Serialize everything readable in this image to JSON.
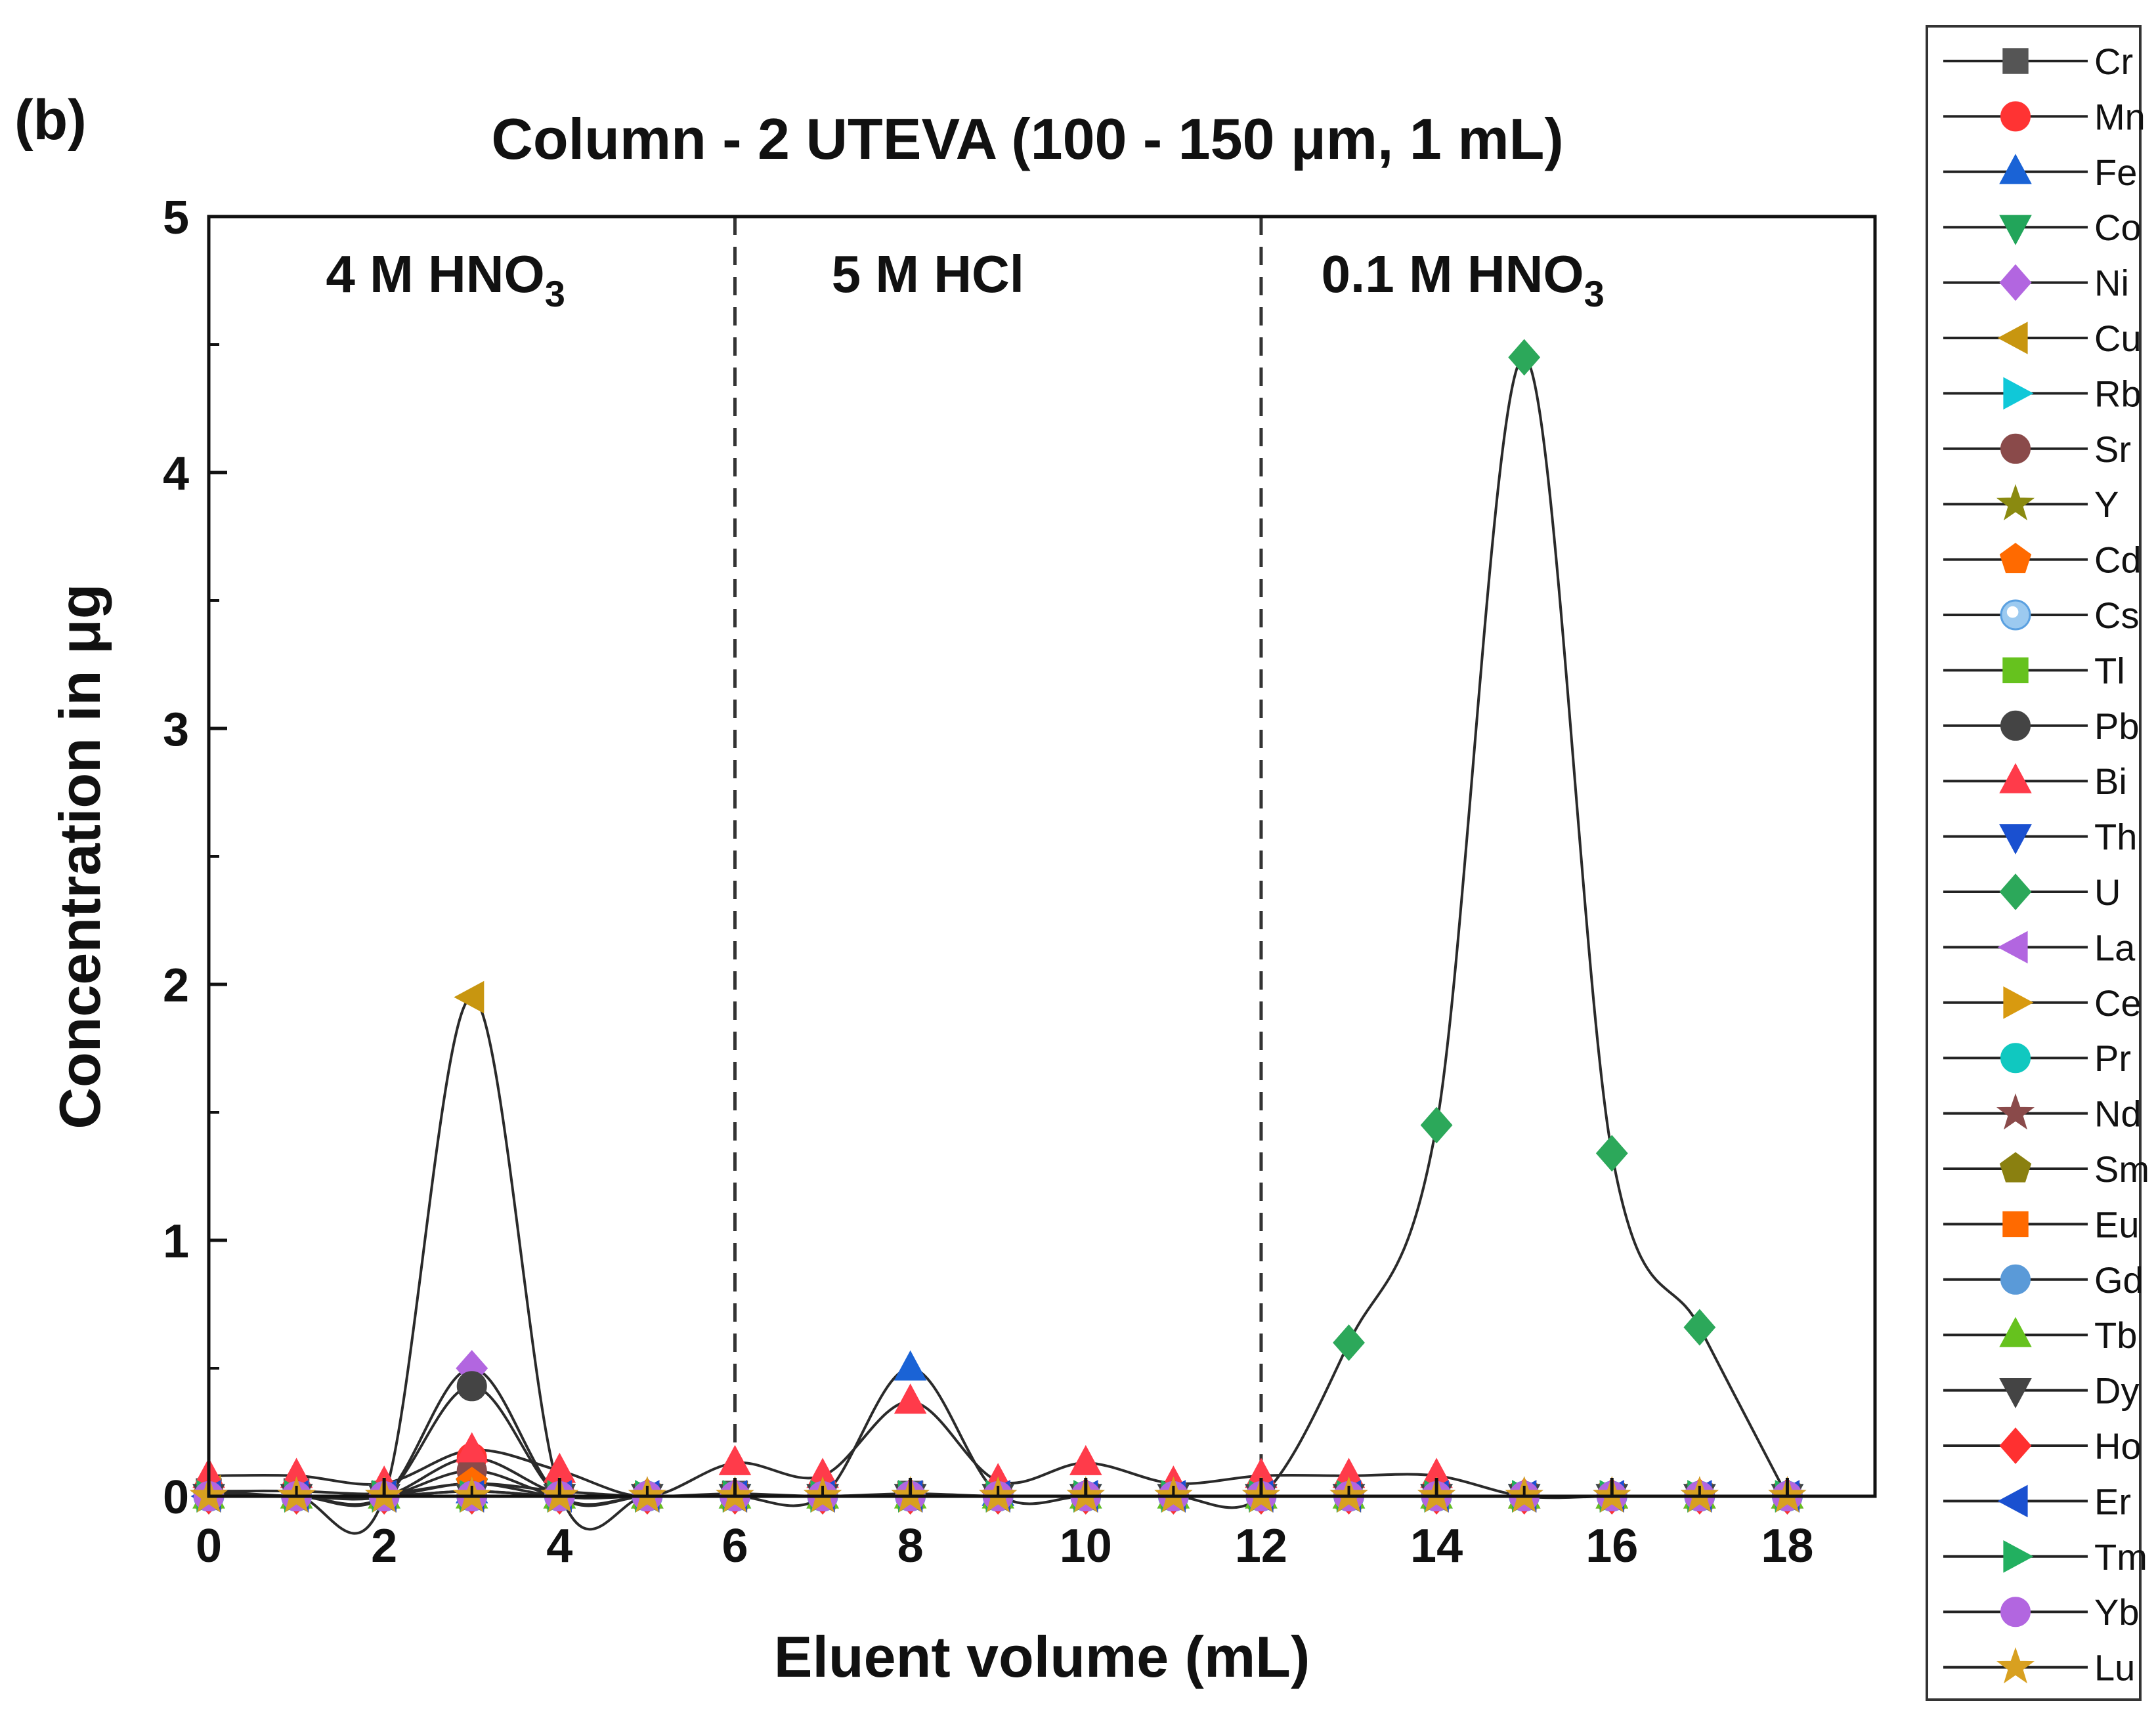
{
  "chart_data": {
    "type": "line",
    "panel_label": "(b)",
    "title": "Column - 2 UTEVA (100 - 150 μm, 1 mL)",
    "xlabel": "Eluent volume (mL)",
    "ylabel": "Concentration in μg",
    "xlim": [
      0,
      19
    ],
    "ylim": [
      0,
      5
    ],
    "x_ticks": [
      0,
      2,
      4,
      6,
      8,
      10,
      12,
      14,
      16,
      18
    ],
    "y_ticks": [
      0,
      1,
      2,
      3,
      4,
      5
    ],
    "dividers": [
      6,
      12
    ],
    "regions": [
      {
        "label": "4 M HNO",
        "sub": "3",
        "x_center": 2.7
      },
      {
        "label": "5 M HCl",
        "sub": "",
        "x_center": 8.2
      },
      {
        "label": "0.1 M HNO",
        "sub": "3",
        "x_center": 14.3
      }
    ],
    "x": [
      0,
      1,
      2,
      3,
      4,
      5,
      6,
      7,
      8,
      9,
      10,
      11,
      12,
      13,
      14,
      15,
      16,
      17,
      18
    ],
    "series": [
      {
        "name": "Cr",
        "color": "#555555",
        "marker": "square",
        "values": [
          0.02,
          0.02,
          0.01,
          0.05,
          0.02,
          0,
          0.01,
          0,
          0.01,
          0,
          0,
          0,
          0,
          0,
          0,
          0,
          0,
          0,
          0
        ]
      },
      {
        "name": "Mn",
        "color": "#ff3333",
        "marker": "circle",
        "values": [
          0.01,
          0,
          0,
          0.15,
          0.01,
          0,
          0,
          0,
          0,
          0,
          0,
          0,
          0,
          0,
          0,
          0,
          0,
          0,
          0
        ]
      },
      {
        "name": "Fe",
        "color": "#1a63d6",
        "marker": "triangle-up",
        "values": [
          0,
          0,
          0,
          0.02,
          0,
          0,
          0,
          0,
          0.5,
          0.01,
          0,
          0,
          0,
          0,
          0,
          0,
          0,
          0,
          0
        ]
      },
      {
        "name": "Co",
        "color": "#22a55a",
        "marker": "triangle-down",
        "values": [
          0,
          0,
          0,
          0.02,
          0,
          0,
          0,
          0,
          0,
          0,
          0,
          0,
          0,
          0,
          0,
          0,
          0,
          0,
          0
        ]
      },
      {
        "name": "Ni",
        "color": "#b266e0",
        "marker": "diamond",
        "values": [
          0,
          0,
          0,
          0.5,
          0,
          0,
          0,
          0,
          0,
          0,
          0,
          0,
          0,
          0,
          0,
          0,
          0,
          0,
          0
        ]
      },
      {
        "name": "Cu",
        "color": "#c89610",
        "marker": "triangle-left",
        "values": [
          0.02,
          0,
          0,
          1.95,
          0.02,
          0,
          0,
          0,
          0,
          0,
          0,
          0,
          0,
          0,
          0,
          0,
          0,
          0,
          0
        ]
      },
      {
        "name": "Rb",
        "color": "#10c8d8",
        "marker": "triangle-right",
        "values": [
          0,
          0,
          0,
          0,
          0,
          0,
          0,
          0,
          0,
          0,
          0,
          0,
          0,
          0,
          0,
          0,
          0,
          0,
          0
        ]
      },
      {
        "name": "Sr",
        "color": "#8a4a4a",
        "marker": "circle",
        "values": [
          0,
          0,
          0,
          0.1,
          0,
          0,
          0,
          0,
          0,
          0,
          0,
          0,
          0,
          0,
          0,
          0,
          0,
          0,
          0
        ]
      },
      {
        "name": "Y",
        "color": "#8a8a10",
        "marker": "star",
        "values": [
          0,
          0,
          0,
          0,
          0,
          0,
          0,
          0,
          0,
          0,
          0,
          0,
          0,
          0,
          0,
          0,
          0,
          0,
          0
        ]
      },
      {
        "name": "Cd",
        "color": "#ff6a00",
        "marker": "pentagon",
        "values": [
          0,
          0,
          0,
          0.05,
          0,
          0,
          0,
          0,
          0,
          0,
          0,
          0,
          0,
          0,
          0,
          0,
          0,
          0,
          0
        ]
      },
      {
        "name": "Cs",
        "color": "#5aa0e0",
        "marker": "circle-half",
        "values": [
          0,
          0,
          0,
          0,
          0,
          0,
          0,
          0,
          0,
          0,
          0,
          0,
          0,
          0,
          0,
          0,
          0,
          0,
          0
        ]
      },
      {
        "name": "Tl",
        "color": "#66c21e",
        "marker": "square",
        "values": [
          0,
          0,
          0,
          0,
          0,
          0,
          0,
          0,
          0,
          0,
          0,
          0,
          0,
          0,
          0,
          0,
          0,
          0,
          0
        ]
      },
      {
        "name": "Pb",
        "color": "#444444",
        "marker": "circle",
        "values": [
          0,
          0,
          0,
          0.43,
          0,
          0,
          0,
          0,
          0,
          0,
          0,
          0,
          0,
          0,
          0,
          0,
          0,
          0,
          0
        ]
      },
      {
        "name": "Bi",
        "color": "#ff3b4a",
        "marker": "triangle-up",
        "values": [
          0.08,
          0.08,
          0.05,
          0.18,
          0.1,
          0,
          0.13,
          0.08,
          0.37,
          0.06,
          0.13,
          0.05,
          0.08,
          0.08,
          0.08,
          0,
          0,
          0,
          0
        ]
      },
      {
        "name": "Th",
        "color": "#1a50d0",
        "marker": "triangle-down",
        "values": [
          0,
          0,
          0,
          0,
          0,
          0,
          0,
          0,
          0,
          0,
          0,
          0,
          0,
          0,
          0,
          0,
          0,
          0,
          0
        ]
      },
      {
        "name": "U",
        "color": "#2ca85a",
        "marker": "diamond",
        "values": [
          0,
          0,
          0,
          0,
          0,
          0,
          0,
          0,
          0,
          0,
          0,
          0,
          0,
          0.6,
          1.45,
          4.45,
          1.34,
          0.66,
          0
        ]
      },
      {
        "name": "La",
        "color": "#b266e0",
        "marker": "triangle-left",
        "values": [
          0,
          0,
          0,
          0,
          0,
          0,
          0,
          0,
          0,
          0,
          0,
          0,
          0,
          0,
          0,
          0,
          0,
          0,
          0
        ]
      },
      {
        "name": "Ce",
        "color": "#d89a10",
        "marker": "triangle-right",
        "values": [
          0,
          0,
          0,
          0,
          0,
          0,
          0,
          0,
          0,
          0,
          0,
          0,
          0,
          0,
          0,
          0,
          0,
          0,
          0
        ]
      },
      {
        "name": "Pr",
        "color": "#10c8c0",
        "marker": "circle",
        "values": [
          0,
          0,
          0,
          0,
          0,
          0,
          0,
          0,
          0,
          0,
          0,
          0,
          0,
          0,
          0,
          0,
          0,
          0,
          0
        ]
      },
      {
        "name": "Nd",
        "color": "#8a4a4a",
        "marker": "star",
        "values": [
          0,
          0,
          0,
          0,
          0,
          0,
          0,
          0,
          0,
          0,
          0,
          0,
          0,
          0,
          0,
          0,
          0,
          0,
          0
        ]
      },
      {
        "name": "Sm",
        "color": "#8a8010",
        "marker": "pentagon",
        "values": [
          0,
          0,
          0,
          0,
          0,
          0,
          0,
          0,
          0,
          0,
          0,
          0,
          0,
          0,
          0,
          0,
          0,
          0,
          0
        ]
      },
      {
        "name": "Eu",
        "color": "#ff6a00",
        "marker": "square",
        "values": [
          0,
          0,
          0,
          0,
          0,
          0,
          0,
          0,
          0,
          0,
          0,
          0,
          0,
          0,
          0,
          0,
          0,
          0,
          0
        ]
      },
      {
        "name": "Gd",
        "color": "#5a9ad8",
        "marker": "circle",
        "values": [
          0,
          0,
          0,
          0,
          0,
          0,
          0,
          0,
          0,
          0,
          0,
          0,
          0,
          0,
          0,
          0,
          0,
          0,
          0
        ]
      },
      {
        "name": "Tb",
        "color": "#66c21e",
        "marker": "triangle-up",
        "values": [
          0,
          0,
          0,
          0,
          0,
          0,
          0,
          0,
          0,
          0,
          0,
          0,
          0,
          0,
          0,
          0,
          0,
          0,
          0
        ]
      },
      {
        "name": "Dy",
        "color": "#444444",
        "marker": "triangle-down",
        "values": [
          0,
          0,
          0,
          0,
          0,
          0,
          0,
          0,
          0,
          0,
          0,
          0,
          0,
          0,
          0,
          0,
          0,
          0,
          0
        ]
      },
      {
        "name": "Ho",
        "color": "#ff3030",
        "marker": "diamond",
        "values": [
          0,
          0,
          0,
          0,
          0,
          0,
          0,
          0,
          0,
          0,
          0,
          0,
          0,
          0,
          0,
          0,
          0,
          0,
          0
        ]
      },
      {
        "name": "Er",
        "color": "#1a50d0",
        "marker": "triangle-left",
        "values": [
          0,
          0,
          0,
          0,
          0,
          0,
          0,
          0,
          0,
          0,
          0,
          0,
          0,
          0,
          0,
          0,
          0,
          0,
          0
        ]
      },
      {
        "name": "Tm",
        "color": "#22b060",
        "marker": "triangle-right",
        "values": [
          0,
          0,
          0,
          0,
          0,
          0,
          0,
          0,
          0,
          0,
          0,
          0,
          0,
          0,
          0,
          0,
          0,
          0,
          0
        ]
      },
      {
        "name": "Yb",
        "color": "#b266e0",
        "marker": "circle",
        "values": [
          0,
          0,
          0,
          0,
          0,
          0,
          0,
          0,
          0,
          0,
          0,
          0,
          0,
          0,
          0,
          0,
          0,
          0,
          0
        ]
      },
      {
        "name": "Lu",
        "color": "#d8a020",
        "marker": "star",
        "values": [
          0,
          0,
          0,
          0,
          0,
          0,
          0,
          0,
          0,
          0,
          0,
          0,
          0,
          0,
          0,
          0,
          0,
          0,
          0
        ]
      }
    ],
    "legend_position": "right"
  }
}
